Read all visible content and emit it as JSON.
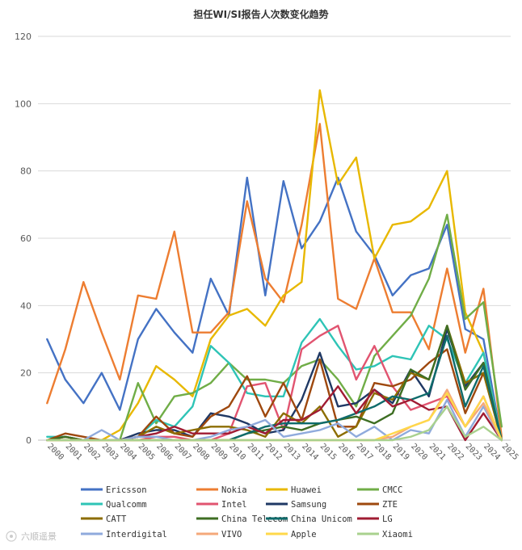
{
  "chart_data": {
    "type": "line",
    "title": "担任WI/SI报告人次数变化趋势",
    "xlabel": "",
    "ylabel": "",
    "ylim": [
      0,
      120
    ],
    "yticks": [
      0,
      20,
      40,
      60,
      80,
      100,
      120
    ],
    "grid": "horizontal",
    "legend_position": "bottom",
    "x": [
      "2000",
      "2001",
      "2002",
      "2003",
      "2004",
      "2005",
      "2006",
      "2007",
      "2008",
      "2009",
      "2010",
      "2011",
      "2012",
      "2013",
      "2014",
      "2015",
      "2016",
      "2017",
      "2018",
      "2019",
      "2020",
      "2021",
      "2022",
      "2023",
      "2024",
      "2025"
    ],
    "series": [
      {
        "name": "Ericsson",
        "color": "#4472c4",
        "values": [
          30,
          18,
          11,
          20,
          9,
          30,
          39,
          32,
          26,
          48,
          37,
          78,
          43,
          77,
          57,
          65,
          78,
          62,
          55,
          43,
          49,
          51,
          64,
          33,
          30,
          0
        ]
      },
      {
        "name": "Nokia",
        "color": "#ed7d31",
        "values": [
          11,
          27,
          47,
          32,
          18,
          43,
          42,
          62,
          32,
          32,
          38,
          71,
          48,
          41,
          64,
          94,
          42,
          39,
          54,
          38,
          38,
          27,
          51,
          26,
          45,
          1
        ]
      },
      {
        "name": "Huawei",
        "color": "#e8b800",
        "values": [
          0,
          0,
          0,
          0,
          3,
          11,
          22,
          18,
          13,
          30,
          37,
          39,
          34,
          43,
          47,
          104,
          76,
          84,
          54,
          64,
          65,
          69,
          80,
          38,
          26,
          0
        ]
      },
      {
        "name": "CMCC",
        "color": "#70ad47",
        "values": [
          0,
          0,
          0,
          0,
          0,
          17,
          5,
          13,
          14,
          17,
          23,
          18,
          18,
          17,
          22,
          24,
          18,
          10,
          25,
          31,
          37,
          48,
          67,
          36,
          41,
          4
        ]
      },
      {
        "name": "Qualcomm",
        "color": "#2ec4b6",
        "values": [
          1,
          1,
          0,
          0,
          0,
          1,
          6,
          4,
          10,
          28,
          23,
          14,
          13,
          13,
          29,
          36,
          28,
          21,
          22,
          25,
          24,
          34,
          30,
          17,
          26,
          0
        ]
      },
      {
        "name": "Intel",
        "color": "#e15470",
        "values": [
          0,
          0,
          0,
          0,
          0,
          0,
          1,
          1,
          0,
          0,
          2,
          16,
          17,
          3,
          27,
          31,
          34,
          18,
          28,
          16,
          9,
          11,
          13,
          4,
          13,
          0
        ]
      },
      {
        "name": "Samsung",
        "color": "#1f3864",
        "values": [
          0,
          1,
          0,
          0,
          0,
          2,
          3,
          3,
          1,
          8,
          7,
          5,
          2,
          3,
          12,
          26,
          10,
          11,
          15,
          11,
          21,
          13,
          33,
          16,
          23,
          0
        ]
      },
      {
        "name": "ZTE",
        "color": "#9e480e",
        "values": [
          0,
          2,
          1,
          0,
          0,
          1,
          7,
          2,
          1,
          7,
          10,
          19,
          7,
          17,
          6,
          24,
          4,
          4,
          17,
          16,
          18,
          23,
          27,
          8,
          20,
          0
        ]
      },
      {
        "name": "CATT",
        "color": "#8c6d00",
        "values": [
          0,
          1,
          0,
          0,
          0,
          1,
          4,
          2,
          3,
          4,
          4,
          3,
          1,
          8,
          5,
          10,
          1,
          4,
          14,
          12,
          20,
          18,
          34,
          17,
          20,
          0
        ]
      },
      {
        "name": "China Telecom",
        "color": "#3e6e23",
        "values": [
          0,
          1,
          0,
          0,
          0,
          0,
          0,
          0,
          0,
          0,
          0,
          2,
          3,
          4,
          3,
          5,
          6,
          7,
          5,
          8,
          21,
          18,
          34,
          15,
          23,
          0
        ]
      },
      {
        "name": "China Unicom",
        "color": "#0e6b6b",
        "values": [
          0,
          0,
          0,
          0,
          0,
          0,
          0,
          0,
          0,
          0,
          0,
          2,
          4,
          5,
          5,
          5,
          6,
          8,
          10,
          13,
          12,
          14,
          31,
          10,
          22,
          0
        ]
      },
      {
        "name": "LG",
        "color": "#a01c33",
        "values": [
          0,
          0,
          0,
          0,
          0,
          1,
          2,
          4,
          2,
          2,
          2,
          4,
          2,
          6,
          6,
          9,
          16,
          8,
          15,
          10,
          12,
          9,
          10,
          0,
          8,
          0
        ]
      },
      {
        "name": "Interdigital",
        "color": "#8faadc",
        "values": [
          0,
          0,
          0,
          3,
          0,
          1,
          1,
          0,
          0,
          1,
          3,
          4,
          6,
          1,
          2,
          3,
          5,
          1,
          4,
          0,
          3,
          2,
          12,
          1,
          10,
          0
        ]
      },
      {
        "name": "VIVO",
        "color": "#f4a87a",
        "values": [
          0,
          0,
          0,
          0,
          0,
          0,
          0,
          0,
          0,
          0,
          0,
          0,
          0,
          0,
          0,
          0,
          0,
          0,
          0,
          1,
          4,
          6,
          15,
          4,
          11,
          0
        ]
      },
      {
        "name": "Apple",
        "color": "#ffd84a",
        "values": [
          0,
          0,
          0,
          0,
          0,
          0,
          0,
          0,
          0,
          0,
          0,
          0,
          0,
          0,
          0,
          0,
          0,
          0,
          0,
          2,
          4,
          6,
          14,
          4,
          13,
          0
        ]
      },
      {
        "name": "Xiaomi",
        "color": "#a9d18e",
        "values": [
          0,
          0,
          0,
          0,
          0,
          0,
          0,
          0,
          0,
          0,
          0,
          0,
          0,
          0,
          0,
          0,
          0,
          0,
          0,
          0,
          1,
          3,
          10,
          1,
          4,
          0
        ]
      }
    ]
  },
  "watermark": "六顺遥景"
}
